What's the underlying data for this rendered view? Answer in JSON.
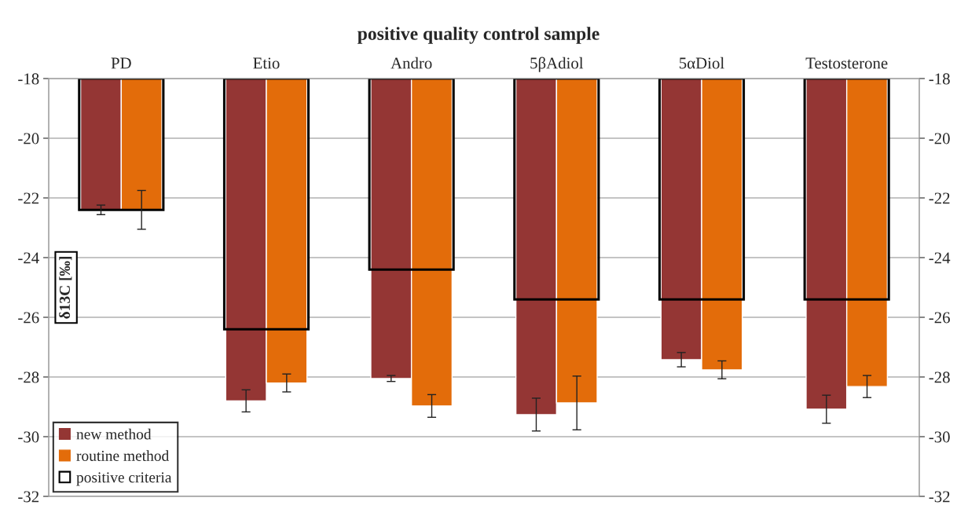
{
  "chart_data": {
    "type": "bar",
    "title": "positive quality control sample",
    "ylabel": "δ13C [‰]",
    "categories": [
      "PD",
      "Etio",
      "Andro",
      "5βAdiol",
      "5αDiol",
      "Testosterone"
    ],
    "series": [
      {
        "name": "new method",
        "color": "#943634",
        "values": [
          -22.4,
          -28.8,
          -28.05,
          -29.26,
          -27.42,
          -29.08
        ],
        "errors": [
          0.16,
          0.37,
          0.1,
          0.55,
          0.24,
          0.47
        ]
      },
      {
        "name": "routine method",
        "color": "#e36c0a",
        "values": [
          -22.4,
          -28.2,
          -28.97,
          -28.87,
          -27.76,
          -28.32
        ],
        "errors": [
          0.65,
          0.3,
          0.38,
          0.9,
          0.3,
          0.37
        ]
      },
      {
        "name": "positive criteria",
        "color": "#000000",
        "line_style": "solid",
        "values": [
          -22.4,
          -26.4,
          -24.4,
          -25.4,
          -25.4,
          -25.4
        ]
      }
    ],
    "ylim": [
      -32,
      -18
    ],
    "yticks": [
      -32,
      -30,
      -28,
      -26,
      -24,
      -22,
      -20,
      -18
    ],
    "y2lim": [
      -32,
      -18
    ],
    "y2ticks": [
      -32,
      -30,
      -28,
      -26,
      -24,
      -22,
      -20,
      -18
    ],
    "grid": "y",
    "legend": "bottom left"
  }
}
